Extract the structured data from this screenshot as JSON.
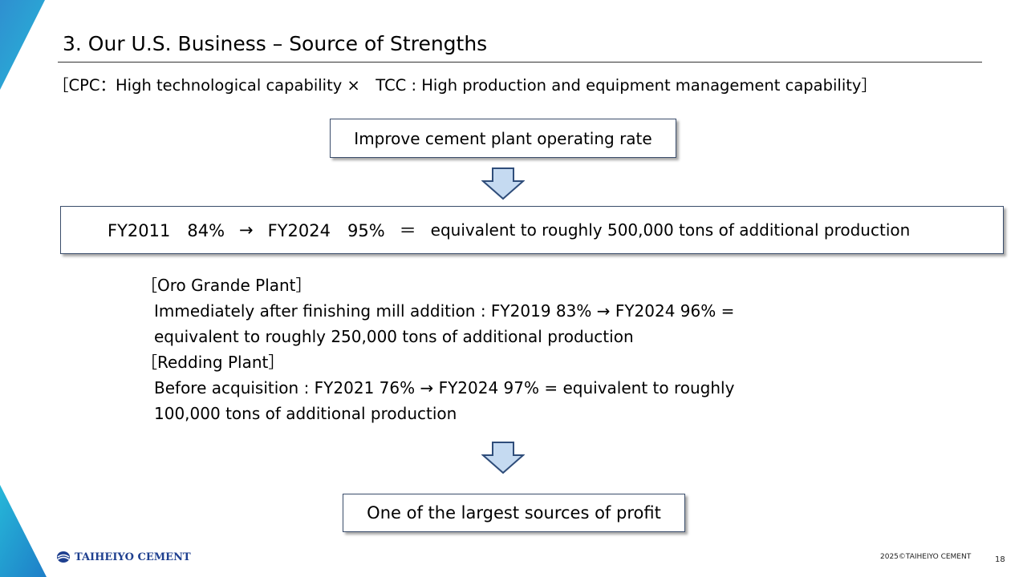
{
  "header": {
    "title": "3. Our U.S. Business – Source of Strengths",
    "subtitle": "［CPC：High technological capability ×　TCC : High production and equipment management capability］"
  },
  "flow": {
    "box1": "Improve cement plant operating rate",
    "box2": {
      "fy2011": "FY2011　84%",
      "arrow": "→",
      "fy2024": "FY2024　95%",
      "equals": "＝",
      "text": "equivalent to roughly 500,000 tons of additional production"
    },
    "box3": "One of the largest sources of profit"
  },
  "details": {
    "oro_heading": "［Oro Grande Plant］",
    "oro_line1": "Immediately after finishing mill addition : FY2019 83% → FY2024 96% =",
    "oro_line2": "equivalent to roughly 250,000 tons of additional production",
    "redding_heading": "［Redding Plant］",
    "redding_line1": "Before acquisition : FY2021 76% → FY2024 97% = equivalent to roughly",
    "redding_line2": "100,000 tons of additional production"
  },
  "footer": {
    "logo_text": "TAIHEIYO CEMENT",
    "copyright": "2025©TAIHEIYO CEMENT",
    "page_number": "18"
  },
  "colors": {
    "accent_blue": "#1a9bd7",
    "arrow_fill": "#c5daf1",
    "arrow_stroke": "#2f4d7a",
    "logo_blue": "#1e3f8f"
  },
  "icons": {
    "down_arrow": "down-arrow-icon",
    "logo_mark": "taiheiyo-logo-icon"
  }
}
